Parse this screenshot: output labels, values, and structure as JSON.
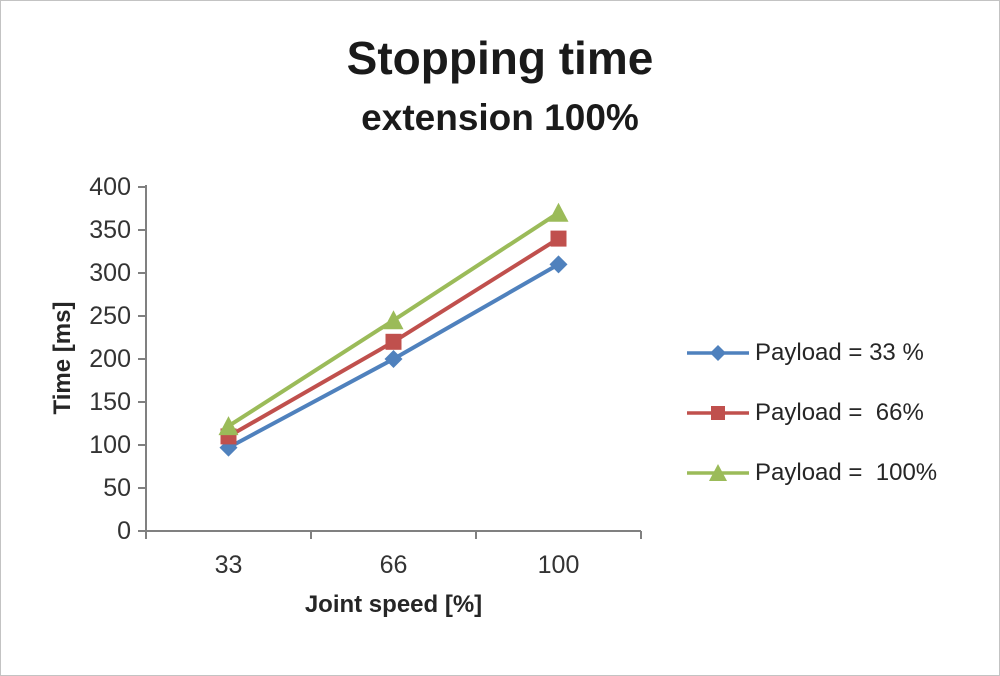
{
  "chart_data": {
    "type": "line",
    "title": "Stopping time",
    "subtitle": "extension 100%",
    "xlabel": "Joint speed [%]",
    "ylabel": "Time [ms]",
    "categories": [
      "33",
      "66",
      "100"
    ],
    "series": [
      {
        "name": "Payload = 33 %",
        "color": "#4f81bd",
        "marker": "diamond",
        "values": [
          97,
          200,
          310
        ]
      },
      {
        "name": "Payload =  66%",
        "color": "#c0504d",
        "marker": "square",
        "values": [
          110,
          220,
          340
        ]
      },
      {
        "name": "Payload =  100%",
        "color": "#9bbb59",
        "marker": "triangle",
        "values": [
          122,
          245,
          370
        ]
      }
    ],
    "ylim": [
      0,
      400
    ],
    "ytick_step": 50,
    "grid": false,
    "legend_position": "right",
    "axis_color": "#808080",
    "tick_text_color": "#333333"
  }
}
